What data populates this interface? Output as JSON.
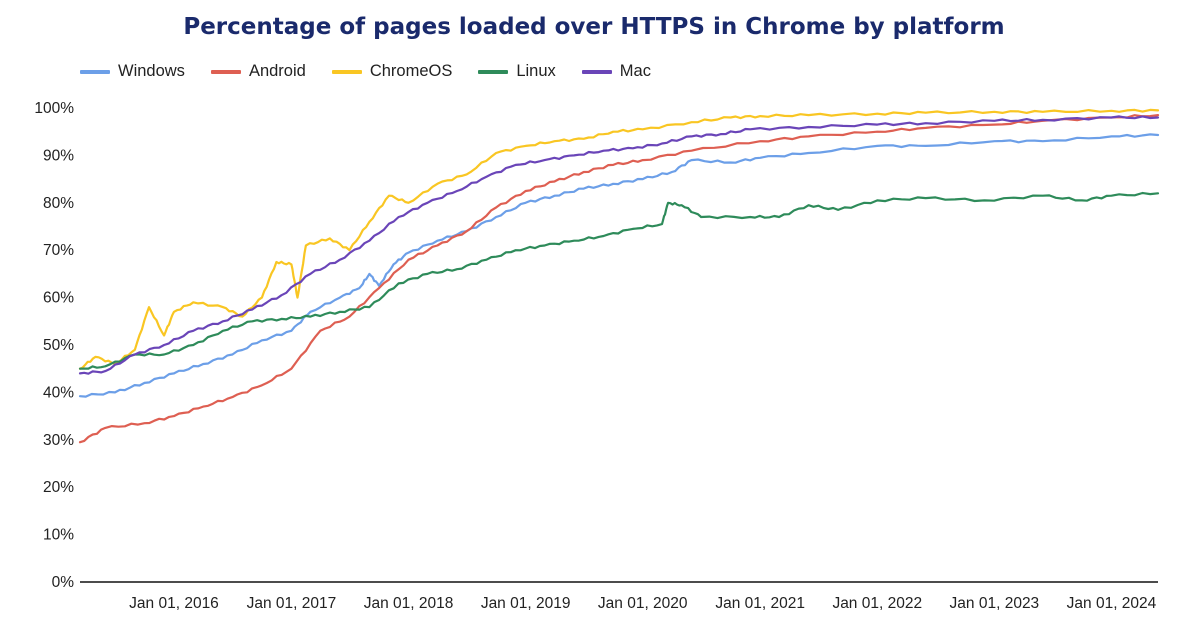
{
  "title": "Percentage of pages loaded over HTTPS in Chrome by platform",
  "colors": {
    "windows": "#6c9fe8",
    "android": "#de5f52",
    "chromeos": "#f9c623",
    "linux": "#2e8b5a",
    "mac": "#6a45b8",
    "axis": "#111111"
  },
  "chart_data": {
    "type": "line",
    "title": "Percentage of pages loaded over HTTPS in Chrome by platform",
    "xlabel": "",
    "ylabel": "",
    "xlim": [
      "2015-03-14",
      "2024-05-25"
    ],
    "ylim": [
      0,
      100
    ],
    "y_unit": "%",
    "grid": false,
    "legend_position": "top-left",
    "y_ticks": [
      "0%",
      "10%",
      "20%",
      "30%",
      "40%",
      "50%",
      "60%",
      "70%",
      "80%",
      "90%",
      "100%"
    ],
    "x_ticks": [
      {
        "date": "2016-01-01",
        "label": "Jan 01, 2016"
      },
      {
        "date": "2017-01-01",
        "label": "Jan 01, 2017"
      },
      {
        "date": "2018-01-01",
        "label": "Jan 01, 2018"
      },
      {
        "date": "2019-01-01",
        "label": "Jan 01, 2019"
      },
      {
        "date": "2020-01-01",
        "label": "Jan 01, 2020"
      },
      {
        "date": "2021-01-01",
        "label": "Jan 01, 2021"
      },
      {
        "date": "2022-01-01",
        "label": "Jan 01, 2022"
      },
      {
        "date": "2023-01-01",
        "label": "Jan 01, 2023"
      },
      {
        "date": "2024-01-01",
        "label": "Jan 01, 2024"
      }
    ],
    "series": [
      {
        "name": "Windows",
        "color_key": "windows",
        "points": [
          [
            "2015-03-14",
            39.2
          ],
          [
            "2015-07-01",
            40
          ],
          [
            "2015-10-01",
            42
          ],
          [
            "2016-01-01",
            44
          ],
          [
            "2016-04-01",
            46
          ],
          [
            "2016-07-01",
            48
          ],
          [
            "2016-10-01",
            51
          ],
          [
            "2017-01-01",
            53
          ],
          [
            "2017-03-01",
            57
          ],
          [
            "2017-06-01",
            60
          ],
          [
            "2017-08-01",
            62
          ],
          [
            "2017-09-01",
            65
          ],
          [
            "2017-10-01",
            62.5
          ],
          [
            "2017-11-15",
            67
          ],
          [
            "2018-01-01",
            69.5
          ],
          [
            "2018-04-01",
            72
          ],
          [
            "2018-07-01",
            74
          ],
          [
            "2018-10-01",
            77
          ],
          [
            "2019-01-01",
            80
          ],
          [
            "2019-04-01",
            81.5
          ],
          [
            "2019-07-01",
            83
          ],
          [
            "2019-10-01",
            84
          ],
          [
            "2020-01-01",
            85
          ],
          [
            "2020-04-01",
            86.5
          ],
          [
            "2020-06-01",
            89
          ],
          [
            "2020-10-01",
            88.5
          ],
          [
            "2021-01-01",
            89.5
          ],
          [
            "2021-06-01",
            90.5
          ],
          [
            "2022-01-01",
            92
          ],
          [
            "2022-06-01",
            92
          ],
          [
            "2023-01-01",
            93
          ],
          [
            "2023-06-01",
            93
          ],
          [
            "2024-01-01",
            94
          ],
          [
            "2024-05-25",
            94.3
          ]
        ]
      },
      {
        "name": "Android",
        "color_key": "android",
        "points": [
          [
            "2015-03-14",
            29.5
          ],
          [
            "2015-06-01",
            32.5
          ],
          [
            "2015-10-01",
            33.5
          ],
          [
            "2016-01-01",
            35
          ],
          [
            "2016-04-01",
            37
          ],
          [
            "2016-07-01",
            39
          ],
          [
            "2016-10-01",
            41.5
          ],
          [
            "2017-01-01",
            45
          ],
          [
            "2017-04-01",
            53
          ],
          [
            "2017-07-01",
            56
          ],
          [
            "2017-10-01",
            62
          ],
          [
            "2018-01-01",
            68
          ],
          [
            "2018-04-01",
            71
          ],
          [
            "2018-07-01",
            74
          ],
          [
            "2018-10-01",
            79
          ],
          [
            "2019-01-01",
            82.5
          ],
          [
            "2019-04-01",
            84.5
          ],
          [
            "2019-07-01",
            86.5
          ],
          [
            "2019-10-01",
            88
          ],
          [
            "2020-01-01",
            89
          ],
          [
            "2020-06-01",
            91
          ],
          [
            "2021-01-01",
            93
          ],
          [
            "2021-06-01",
            94
          ],
          [
            "2022-01-01",
            95
          ],
          [
            "2022-06-01",
            95.8
          ],
          [
            "2023-01-01",
            96.5
          ],
          [
            "2023-06-01",
            97.3
          ],
          [
            "2024-01-01",
            98
          ],
          [
            "2024-05-25",
            98.5
          ]
        ]
      },
      {
        "name": "ChromeOS",
        "color_key": "chromeos",
        "points": [
          [
            "2015-03-14",
            45
          ],
          [
            "2015-05-01",
            47.5
          ],
          [
            "2015-07-01",
            46
          ],
          [
            "2015-09-01",
            49
          ],
          [
            "2015-10-15",
            58
          ],
          [
            "2015-12-01",
            52
          ],
          [
            "2016-01-01",
            57
          ],
          [
            "2016-03-01",
            59
          ],
          [
            "2016-06-01",
            58
          ],
          [
            "2016-08-01",
            56
          ],
          [
            "2016-10-01",
            60
          ],
          [
            "2016-11-15",
            67.5
          ],
          [
            "2017-01-01",
            67
          ],
          [
            "2017-01-20",
            60
          ],
          [
            "2017-02-15",
            71
          ],
          [
            "2017-05-01",
            72.5
          ],
          [
            "2017-07-01",
            70
          ],
          [
            "2017-09-01",
            76
          ],
          [
            "2017-11-01",
            81.5
          ],
          [
            "2018-01-01",
            80
          ],
          [
            "2018-04-01",
            84
          ],
          [
            "2018-07-01",
            86
          ],
          [
            "2018-10-01",
            90.5
          ],
          [
            "2019-01-01",
            92
          ],
          [
            "2019-04-01",
            93
          ],
          [
            "2019-07-01",
            93.5
          ],
          [
            "2019-10-01",
            95
          ],
          [
            "2020-01-01",
            95.5
          ],
          [
            "2020-06-01",
            97
          ],
          [
            "2020-10-01",
            98
          ],
          [
            "2021-01-01",
            98.3
          ],
          [
            "2021-06-01",
            98.5
          ],
          [
            "2022-01-01",
            98.8
          ],
          [
            "2022-06-01",
            99
          ],
          [
            "2023-01-01",
            99.2
          ],
          [
            "2023-06-01",
            99.2
          ],
          [
            "2024-01-01",
            99.4
          ],
          [
            "2024-05-25",
            99.5
          ]
        ]
      },
      {
        "name": "Linux",
        "color_key": "linux",
        "points": [
          [
            "2015-03-14",
            45
          ],
          [
            "2015-06-01",
            45.5
          ],
          [
            "2015-09-01",
            48
          ],
          [
            "2015-12-01",
            48
          ],
          [
            "2016-03-01",
            50
          ],
          [
            "2016-06-01",
            53
          ],
          [
            "2016-09-01",
            55
          ],
          [
            "2016-12-01",
            55.5
          ],
          [
            "2017-03-01",
            56
          ],
          [
            "2017-06-01",
            57
          ],
          [
            "2017-09-01",
            58
          ],
          [
            "2017-12-01",
            63
          ],
          [
            "2018-03-01",
            65
          ],
          [
            "2018-06-01",
            66
          ],
          [
            "2018-09-01",
            68
          ],
          [
            "2018-12-01",
            70
          ],
          [
            "2019-03-01",
            71
          ],
          [
            "2019-06-01",
            72
          ],
          [
            "2019-09-01",
            73
          ],
          [
            "2019-12-01",
            74.5
          ],
          [
            "2020-03-01",
            75.5
          ],
          [
            "2020-03-20",
            80
          ],
          [
            "2020-05-01",
            79.5
          ],
          [
            "2020-07-01",
            77
          ],
          [
            "2020-12-01",
            77
          ],
          [
            "2021-03-01",
            77
          ],
          [
            "2021-06-01",
            79.5
          ],
          [
            "2021-09-01",
            78.5
          ],
          [
            "2022-01-01",
            80.5
          ],
          [
            "2022-06-01",
            81
          ],
          [
            "2022-12-01",
            80.5
          ],
          [
            "2023-06-01",
            81.5
          ],
          [
            "2023-10-01",
            80.5
          ],
          [
            "2024-01-01",
            81.5
          ],
          [
            "2024-05-25",
            82
          ]
        ]
      },
      {
        "name": "Mac",
        "color_key": "mac",
        "points": [
          [
            "2015-03-14",
            44
          ],
          [
            "2015-06-01",
            44.5
          ],
          [
            "2015-09-01",
            48
          ],
          [
            "2015-12-01",
            50
          ],
          [
            "2016-03-01",
            53
          ],
          [
            "2016-06-01",
            55
          ],
          [
            "2016-09-01",
            57.5
          ],
          [
            "2016-12-01",
            60.5
          ],
          [
            "2017-03-01",
            65
          ],
          [
            "2017-06-01",
            68
          ],
          [
            "2017-09-01",
            72
          ],
          [
            "2017-12-01",
            77
          ],
          [
            "2018-03-01",
            80
          ],
          [
            "2018-06-01",
            82.5
          ],
          [
            "2018-09-01",
            85.5
          ],
          [
            "2018-12-01",
            88
          ],
          [
            "2019-03-01",
            89
          ],
          [
            "2019-06-01",
            90
          ],
          [
            "2019-09-01",
            91
          ],
          [
            "2019-12-01",
            91.5
          ],
          [
            "2020-03-01",
            92.5
          ],
          [
            "2020-06-01",
            94
          ],
          [
            "2020-09-01",
            94.5
          ],
          [
            "2020-12-01",
            95.5
          ],
          [
            "2021-06-01",
            96
          ],
          [
            "2022-01-01",
            96.5
          ],
          [
            "2022-06-01",
            96.8
          ],
          [
            "2023-01-01",
            97.3
          ],
          [
            "2023-06-01",
            97.5
          ],
          [
            "2024-01-01",
            98
          ],
          [
            "2024-05-25",
            98
          ]
        ]
      }
    ]
  }
}
